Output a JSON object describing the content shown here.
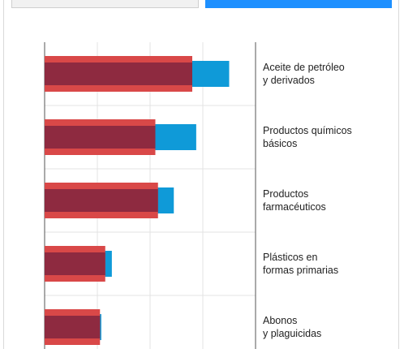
{
  "tabs": [
    {
      "label": "",
      "active": false
    },
    {
      "label": "",
      "active": true
    }
  ],
  "colors": {
    "series_back": "#0f9ad8",
    "series_front_outer": "#d94848",
    "series_front_inner": "#8e2a40",
    "grid": "#e3e3e3",
    "axis": "#555555"
  },
  "chart_data": {
    "type": "bar",
    "orientation": "horizontal",
    "categories": [
      [
        "Aceite de petróleo",
        "y derivados"
      ],
      [
        "Productos químicos",
        "básicos"
      ],
      [
        "Productos",
        "farmacéuticos"
      ],
      [
        "Plásticos en",
        "formas primarias"
      ],
      [
        "Abonos",
        "y plaguicidas"
      ]
    ],
    "series": [
      {
        "values": [
          7.0,
          5.75,
          4.9,
          2.55,
          2.15
        ]
      },
      {
        "values": [
          5.6,
          4.2,
          4.3,
          2.3,
          2.1
        ]
      }
    ],
    "xlim": [
      0,
      8
    ],
    "grid": true,
    "category_labels_position": "right"
  }
}
